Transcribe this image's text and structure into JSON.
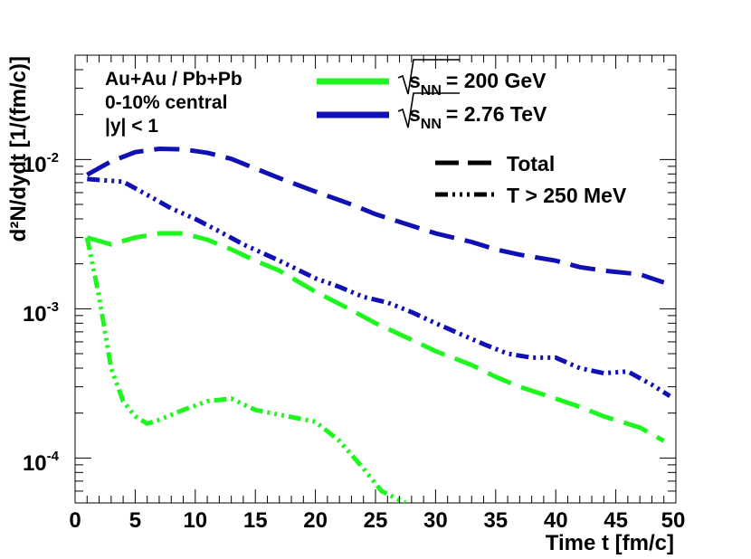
{
  "chart_data": {
    "type": "line",
    "title": "",
    "xlabel": "Time t [fm/c]",
    "ylabel": "d²N/dydt [1/(fm/c)]",
    "xlim": [
      0,
      50
    ],
    "ylim": [
      5e-05,
      0.05
    ],
    "yscale": "log",
    "x_ticks": [
      "0",
      "5",
      "10",
      "15",
      "20",
      "25",
      "30",
      "35",
      "40",
      "45",
      "50"
    ],
    "y_ticks": [
      {
        "base": "10",
        "exp": "-4",
        "value": 0.0001
      },
      {
        "base": "10",
        "exp": "-3",
        "value": 0.001
      },
      {
        "base": "10",
        "exp": "-2",
        "value": 0.01
      }
    ],
    "annotations": [
      "Au+Au / Pb+Pb",
      "0-10% central",
      "|y| < 1"
    ],
    "legend": {
      "energy": [
        {
          "prefix": "s",
          "sub": "NN",
          "value": "= 200 GeV",
          "color": "#1ef71e"
        },
        {
          "prefix": "s",
          "sub": "NN",
          "value": "= 2.76 TeV",
          "color": "#1010b4"
        }
      ],
      "style": [
        {
          "label": "Total",
          "dash": "dashed"
        },
        {
          "label": "T > 250 MeV",
          "dash": "dashdotdot"
        }
      ]
    },
    "series": [
      {
        "name": "2.76 TeV Total",
        "color": "#1010b4",
        "dash": "dashed",
        "x": [
          1,
          3,
          5,
          7,
          9,
          11,
          13,
          15,
          17,
          20,
          23,
          25,
          28,
          30,
          33,
          35,
          37,
          40,
          42,
          44,
          47,
          49
        ],
        "y": [
          0.0079,
          0.0097,
          0.0112,
          0.0118,
          0.0117,
          0.0111,
          0.0101,
          0.0087,
          0.0075,
          0.0061,
          0.005,
          0.0043,
          0.0036,
          0.0032,
          0.0028,
          0.0025,
          0.0023,
          0.0021,
          0.0019,
          0.0018,
          0.0017,
          0.0015
        ]
      },
      {
        "name": "2.76 TeV T > 250 MeV",
        "color": "#1010b4",
        "dash": "dashdotdot",
        "x": [
          1,
          4,
          6,
          8,
          10,
          12,
          14,
          17,
          20,
          22,
          24,
          26,
          28,
          30,
          32,
          34,
          36,
          38,
          40,
          42,
          44,
          46,
          48,
          49.5
        ],
        "y": [
          0.0074,
          0.0071,
          0.0058,
          0.0047,
          0.004,
          0.0033,
          0.0027,
          0.0021,
          0.0016,
          0.0014,
          0.0012,
          0.0011,
          0.00095,
          0.0008,
          0.00068,
          0.00058,
          0.0005,
          0.00047,
          0.00047,
          0.0004,
          0.00037,
          0.00038,
          0.00031,
          0.00026
        ]
      },
      {
        "name": "200 GeV Total",
        "color": "#1ef71e",
        "dash": "dashed",
        "x": [
          1,
          3,
          5,
          7,
          9,
          11,
          13,
          15,
          17,
          20,
          23,
          25,
          28,
          30,
          33,
          35,
          37,
          40,
          42,
          44,
          47,
          49
        ],
        "y": [
          0.003,
          0.0027,
          0.003,
          0.0032,
          0.0032,
          0.0029,
          0.0025,
          0.0021,
          0.0018,
          0.0013,
          0.00098,
          0.0008,
          0.00062,
          0.00052,
          0.00042,
          0.00035,
          0.0003,
          0.00025,
          0.00022,
          0.00019,
          0.00016,
          0.00013
        ]
      },
      {
        "name": "200 GeV T > 250 MeV",
        "color": "#1ef71e",
        "dash": "dashdotdot",
        "x": [
          1,
          2,
          3,
          4,
          5,
          6,
          7,
          9,
          11,
          13,
          15,
          17,
          20,
          22,
          24,
          25.5,
          27.5
        ],
        "y": [
          0.003,
          0.0012,
          0.0004,
          0.00024,
          0.00019,
          0.00017,
          0.00018,
          0.00021,
          0.00024,
          0.00025,
          0.00021,
          0.000195,
          0.000175,
          0.00013,
          8.5e-05,
          6e-05,
          5e-05
        ]
      }
    ]
  }
}
